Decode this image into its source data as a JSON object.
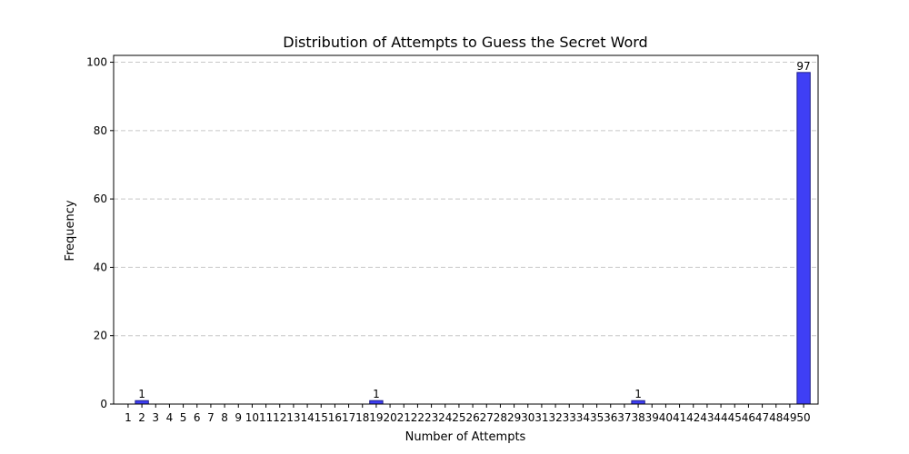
{
  "chart_data": {
    "type": "bar",
    "title": "Distribution of Attempts to Guess the Secret Word",
    "xlabel": "Number of Attempts",
    "ylabel": "Frequency",
    "categories": [
      "1",
      "2",
      "3",
      "4",
      "5",
      "6",
      "7",
      "8",
      "9",
      "10",
      "11",
      "12",
      "13",
      "14",
      "15",
      "16",
      "17",
      "18",
      "19",
      "20",
      "21",
      "22",
      "23",
      "24",
      "25",
      "26",
      "27",
      "28",
      "29",
      "30",
      "31",
      "32",
      "33",
      "34",
      "35",
      "36",
      "37",
      "38",
      "39",
      "40",
      "41",
      "42",
      "43",
      "44",
      "45",
      "46",
      "47",
      "48",
      "49",
      "50"
    ],
    "values": [
      0,
      1,
      0,
      0,
      0,
      0,
      0,
      0,
      0,
      0,
      0,
      0,
      0,
      0,
      0,
      0,
      0,
      0,
      1,
      0,
      0,
      0,
      0,
      0,
      0,
      0,
      0,
      0,
      0,
      0,
      0,
      0,
      0,
      0,
      0,
      0,
      0,
      1,
      0,
      0,
      0,
      0,
      0,
      0,
      0,
      0,
      0,
      0,
      0,
      97
    ],
    "ylim": [
      0,
      102
    ],
    "yticks": [
      0,
      20,
      40,
      60,
      80,
      100
    ],
    "grid": "y-dashed",
    "bar_color": "#3f3ff5",
    "bar_edge_color": "#1e1e8c",
    "show_value_labels": "nonzero"
  }
}
